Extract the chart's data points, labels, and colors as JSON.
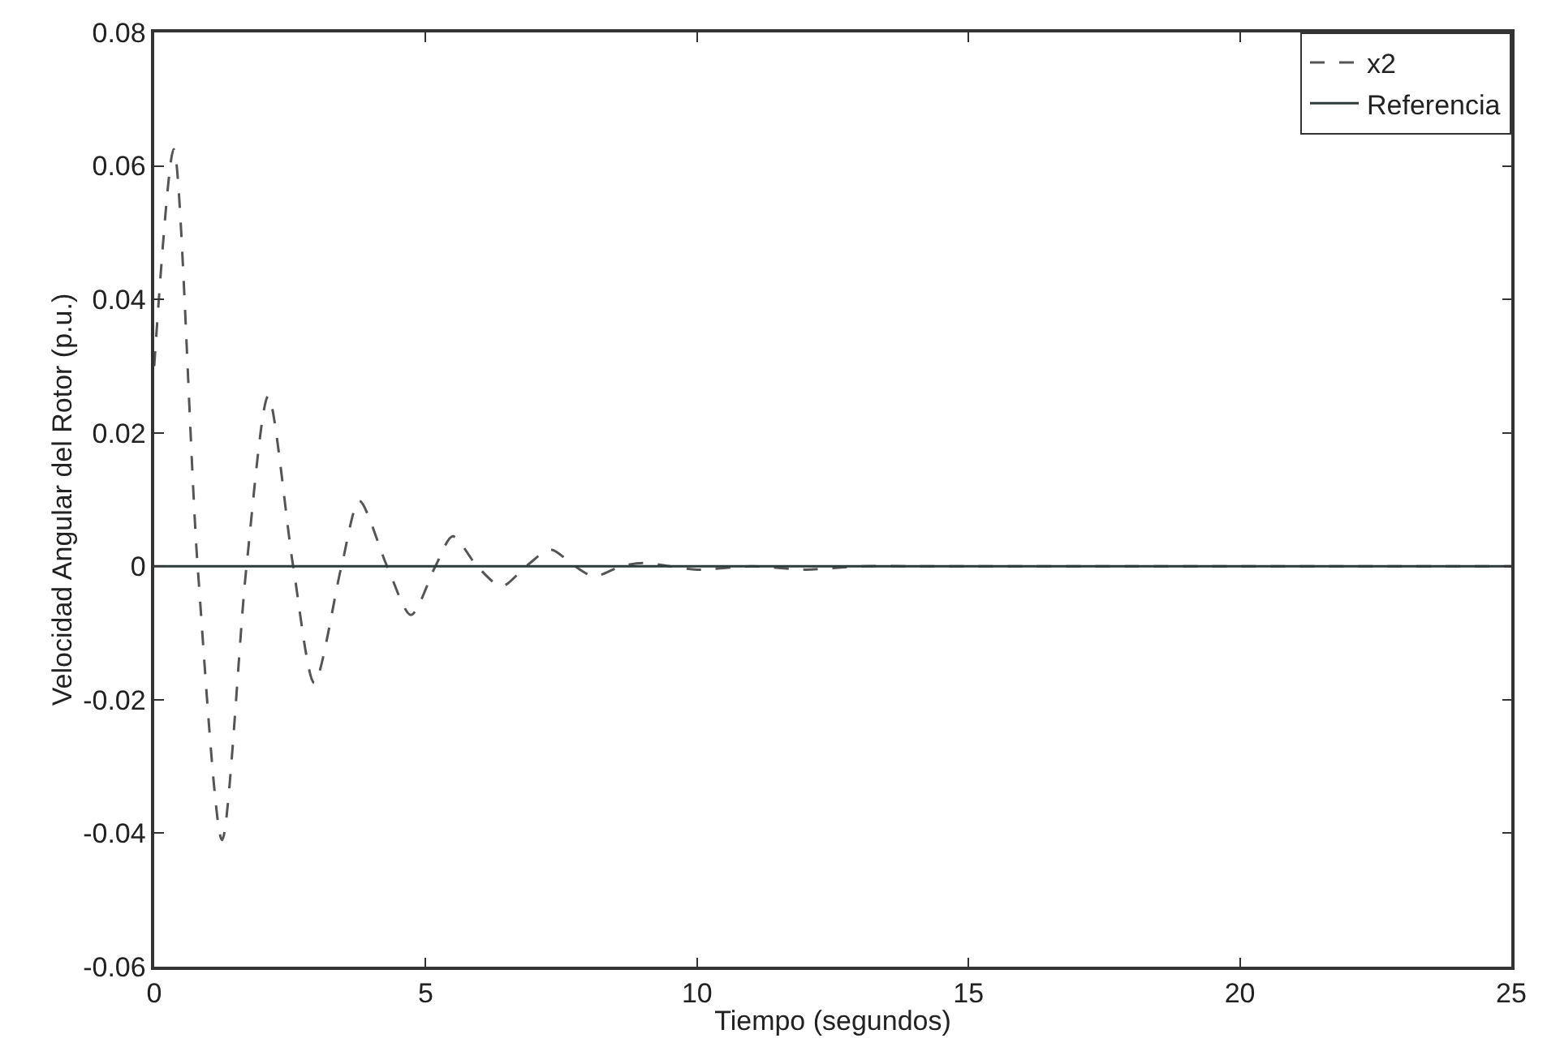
{
  "chart_data": {
    "type": "line",
    "xlabel": "Tiempo (segundos)",
    "ylabel": "Velocidad Angular del Rotor (p.u.)",
    "xlim": [
      0,
      25
    ],
    "xticks": [
      0,
      5,
      10,
      15,
      20,
      25
    ],
    "ylim": [
      -0.06,
      0.08
    ],
    "yticks": [
      -0.06,
      -0.04,
      -0.02,
      0,
      0.02,
      0.04,
      0.06,
      0.08
    ],
    "legend": "top right",
    "marker": "none",
    "series": [
      {
        "name": "x2",
        "color": "#555555",
        "line_style": "dashed",
        "x": [
          0,
          0.36,
          0.8,
          1.25,
          1.7,
          2.1,
          2.56,
          2.95,
          3.45,
          3.78,
          4.29,
          4.73,
          5.18,
          5.5,
          5.95,
          6.4,
          6.85,
          7.3,
          7.75,
          8.1,
          8.6,
          9,
          9.5,
          10,
          11,
          12,
          13,
          14,
          15,
          16,
          18,
          20,
          22,
          25
        ],
        "values": [
          0.03,
          0.0625,
          0,
          -0.041,
          0,
          0.0255,
          0,
          -0.0175,
          0,
          0.0098,
          0,
          -0.0073,
          0,
          0.0045,
          0,
          -0.003,
          0,
          0.0025,
          0,
          -0.0015,
          0,
          0.0005,
          0,
          -0.0005,
          0,
          -0.0005,
          0,
          0,
          0,
          0,
          0,
          0,
          0,
          0
        ]
      },
      {
        "name": "Referencia",
        "color": "#2f3a3a",
        "line_style": "solid",
        "x": [
          0,
          25
        ],
        "values": [
          0,
          0
        ]
      }
    ]
  }
}
